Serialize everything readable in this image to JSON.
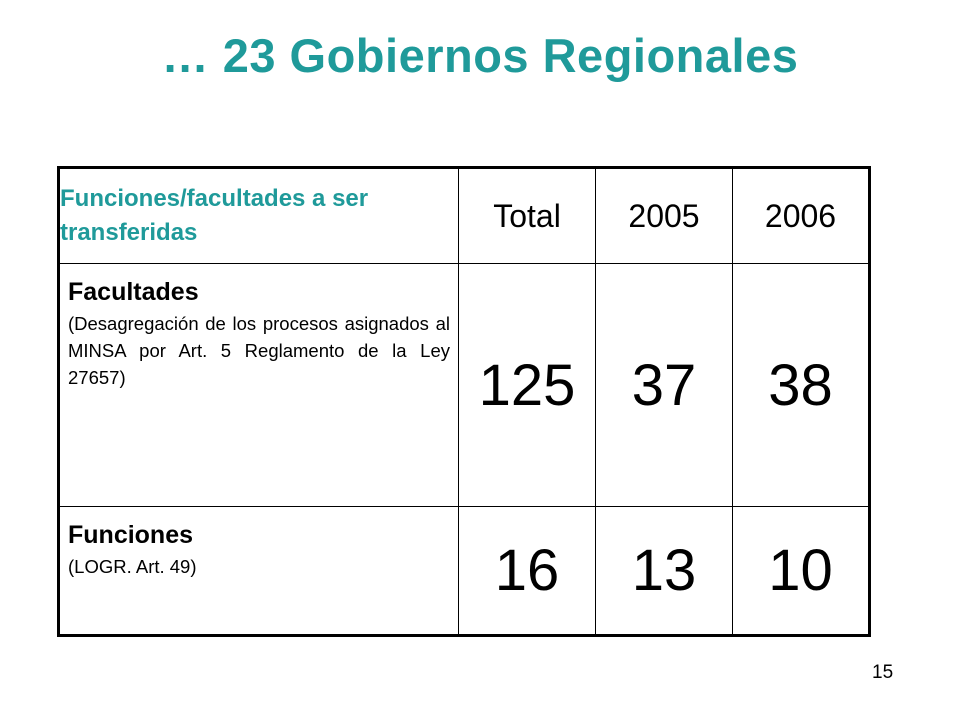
{
  "title": "… 23 Gobiernos Regionales",
  "table": {
    "header": {
      "label": "Funciones/facultades a ser transferidas",
      "total": "Total",
      "year1": "2005",
      "year2": "2006"
    },
    "rows": [
      {
        "title": "Facultades",
        "note": "(Desagregación de los procesos asignados al MINSA por Art. 5 Reglamento de la Ley 27657)",
        "total": "125",
        "year1": "37",
        "year2": "38"
      },
      {
        "title": "Funciones",
        "note": "(LOGR. Art. 49)",
        "total": "16",
        "year1": "13",
        "year2": "10"
      }
    ]
  },
  "page_number": "15",
  "colors": {
    "accent": "#1f9a9a",
    "text": "#000000",
    "background": "#ffffff"
  }
}
